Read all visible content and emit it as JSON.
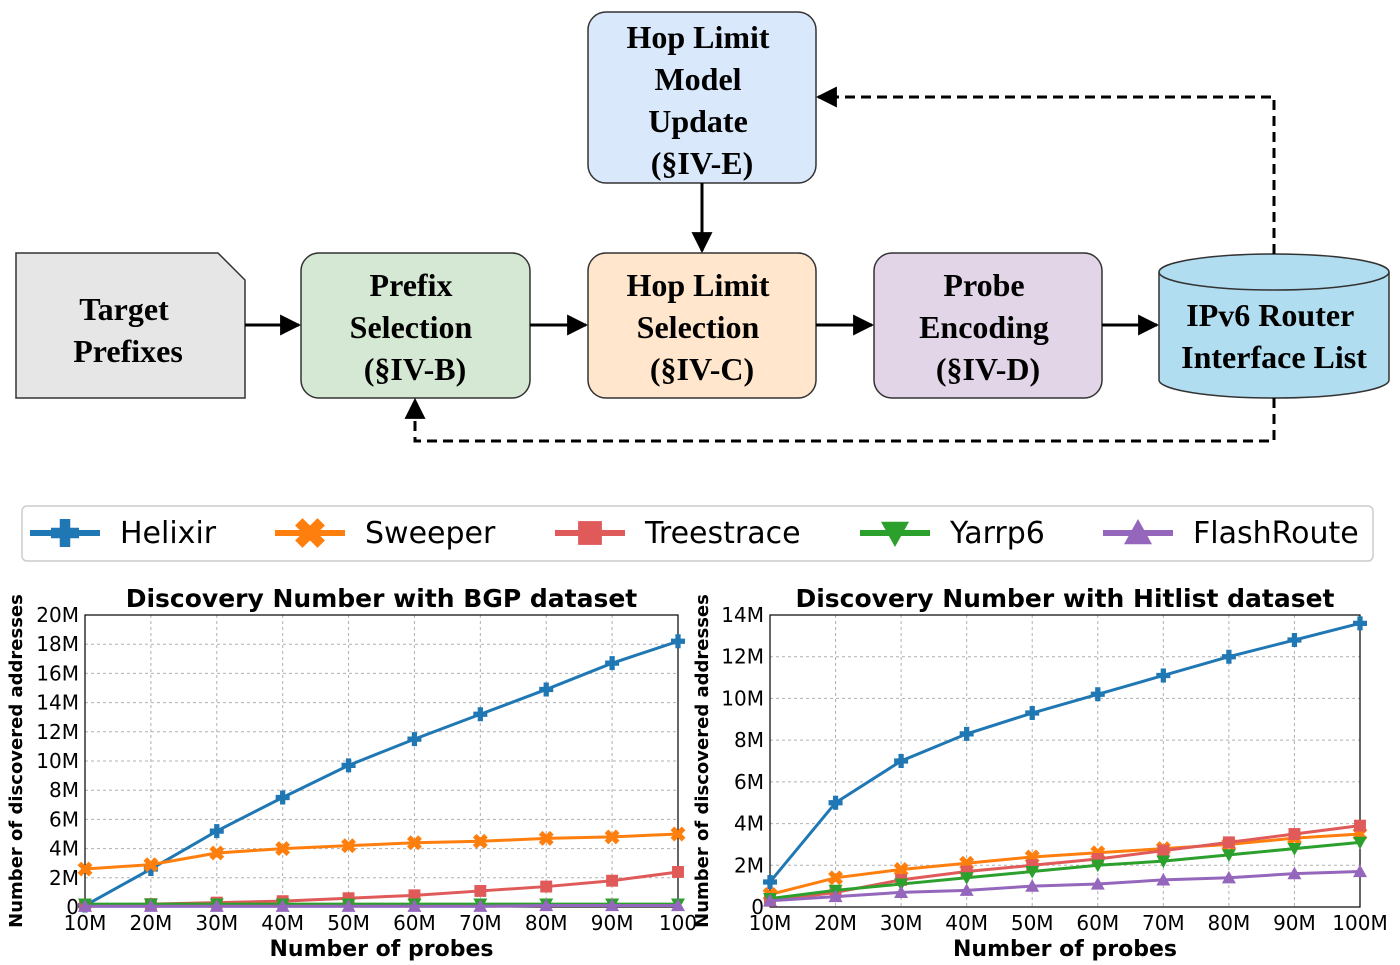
{
  "diagram": {
    "nodes": {
      "target": [
        "Target",
        "Prefixes"
      ],
      "prefix": [
        "Prefix",
        "Selection",
        "(§IV-B)"
      ],
      "hop_select": [
        "Hop Limit",
        "Selection",
        "(§IV-C)"
      ],
      "probe": [
        "Probe",
        "Encoding",
        "(§IV-D)"
      ],
      "ipv6": [
        "IPv6 Router",
        "Interface List"
      ],
      "hop_update": [
        "Hop Limit",
        "Model",
        "Update",
        "(§IV-E)"
      ]
    },
    "colors": {
      "target": "#e6e6e6",
      "prefix": "#d5e8d4",
      "hop_select": "#ffe6cc",
      "probe": "#e1d5e7",
      "ipv6": "#b1ddf0",
      "hop_update": "#dae8fc"
    }
  },
  "legend": [
    {
      "name": "Helixir",
      "color": "#1f77b4",
      "marker": "plus"
    },
    {
      "name": "Sweeper",
      "color": "#ff7f0e",
      "marker": "x"
    },
    {
      "name": "Treestrace",
      "color": "#e05a5a",
      "marker": "square"
    },
    {
      "name": "Yarrp6",
      "color": "#2ca02c",
      "marker": "triangle-down"
    },
    {
      "name": "FlashRoute",
      "color": "#9467bd",
      "marker": "triangle-up"
    }
  ],
  "chart_data": [
    {
      "type": "line",
      "title": "Discovery Number with BGP dataset",
      "xlabel": "Number of probes",
      "ylabel": "Number of discovered addresses",
      "x": [
        10,
        20,
        30,
        40,
        50,
        60,
        70,
        80,
        90,
        100
      ],
      "xticks": [
        "10M",
        "20M",
        "30M",
        "40M",
        "50M",
        "60M",
        "70M",
        "80M",
        "90M",
        "100"
      ],
      "ylim": [
        0,
        20
      ],
      "yticks": [
        "0",
        "2M",
        "4M",
        "6M",
        "8M",
        "10M",
        "12M",
        "14M",
        "16M",
        "18M",
        "20M"
      ],
      "grid": true,
      "series": [
        {
          "name": "Helixir",
          "values": [
            0.1,
            2.6,
            5.2,
            7.5,
            9.7,
            11.5,
            13.2,
            14.9,
            16.7,
            18.2
          ]
        },
        {
          "name": "Sweeper",
          "values": [
            2.6,
            2.9,
            3.7,
            4.0,
            4.2,
            4.4,
            4.5,
            4.7,
            4.8,
            5.0
          ]
        },
        {
          "name": "Treestrace",
          "values": [
            0.1,
            0.2,
            0.3,
            0.4,
            0.6,
            0.8,
            1.1,
            1.4,
            1.8,
            2.4
          ]
        },
        {
          "name": "Yarrp6",
          "values": [
            0.2,
            0.2,
            0.2,
            0.2,
            0.2,
            0.2,
            0.2,
            0.2,
            0.2,
            0.2
          ]
        },
        {
          "name": "FlashRoute",
          "values": [
            0.05,
            0.05,
            0.05,
            0.05,
            0.05,
            0.05,
            0.05,
            0.1,
            0.1,
            0.1
          ]
        }
      ]
    },
    {
      "type": "line",
      "title": "Discovery Number with Hitlist dataset",
      "xlabel": "Number of probes",
      "ylabel": "Number of discovered addresses",
      "x": [
        10,
        20,
        30,
        40,
        50,
        60,
        70,
        80,
        90,
        100
      ],
      "xticks": [
        "10M",
        "20M",
        "30M",
        "40M",
        "50M",
        "60M",
        "70M",
        "80M",
        "90M",
        "100M"
      ],
      "ylim": [
        0,
        14
      ],
      "yticks": [
        "0",
        "2M",
        "4M",
        "6M",
        "8M",
        "10M",
        "12M",
        "14M"
      ],
      "grid": true,
      "series": [
        {
          "name": "Helixir",
          "values": [
            1.2,
            5.0,
            7.0,
            8.3,
            9.3,
            10.2,
            11.1,
            12.0,
            12.8,
            13.6
          ]
        },
        {
          "name": "Sweeper",
          "values": [
            0.6,
            1.4,
            1.8,
            2.1,
            2.4,
            2.6,
            2.8,
            3.0,
            3.3,
            3.5
          ]
        },
        {
          "name": "Treestrace",
          "values": [
            0.3,
            0.7,
            1.3,
            1.7,
            2.0,
            2.3,
            2.7,
            3.1,
            3.5,
            3.9
          ]
        },
        {
          "name": "Yarrp6",
          "values": [
            0.4,
            0.8,
            1.1,
            1.4,
            1.7,
            2.0,
            2.2,
            2.5,
            2.8,
            3.1
          ]
        },
        {
          "name": "FlashRoute",
          "values": [
            0.3,
            0.5,
            0.7,
            0.8,
            1.0,
            1.1,
            1.3,
            1.4,
            1.6,
            1.7
          ]
        }
      ]
    }
  ]
}
